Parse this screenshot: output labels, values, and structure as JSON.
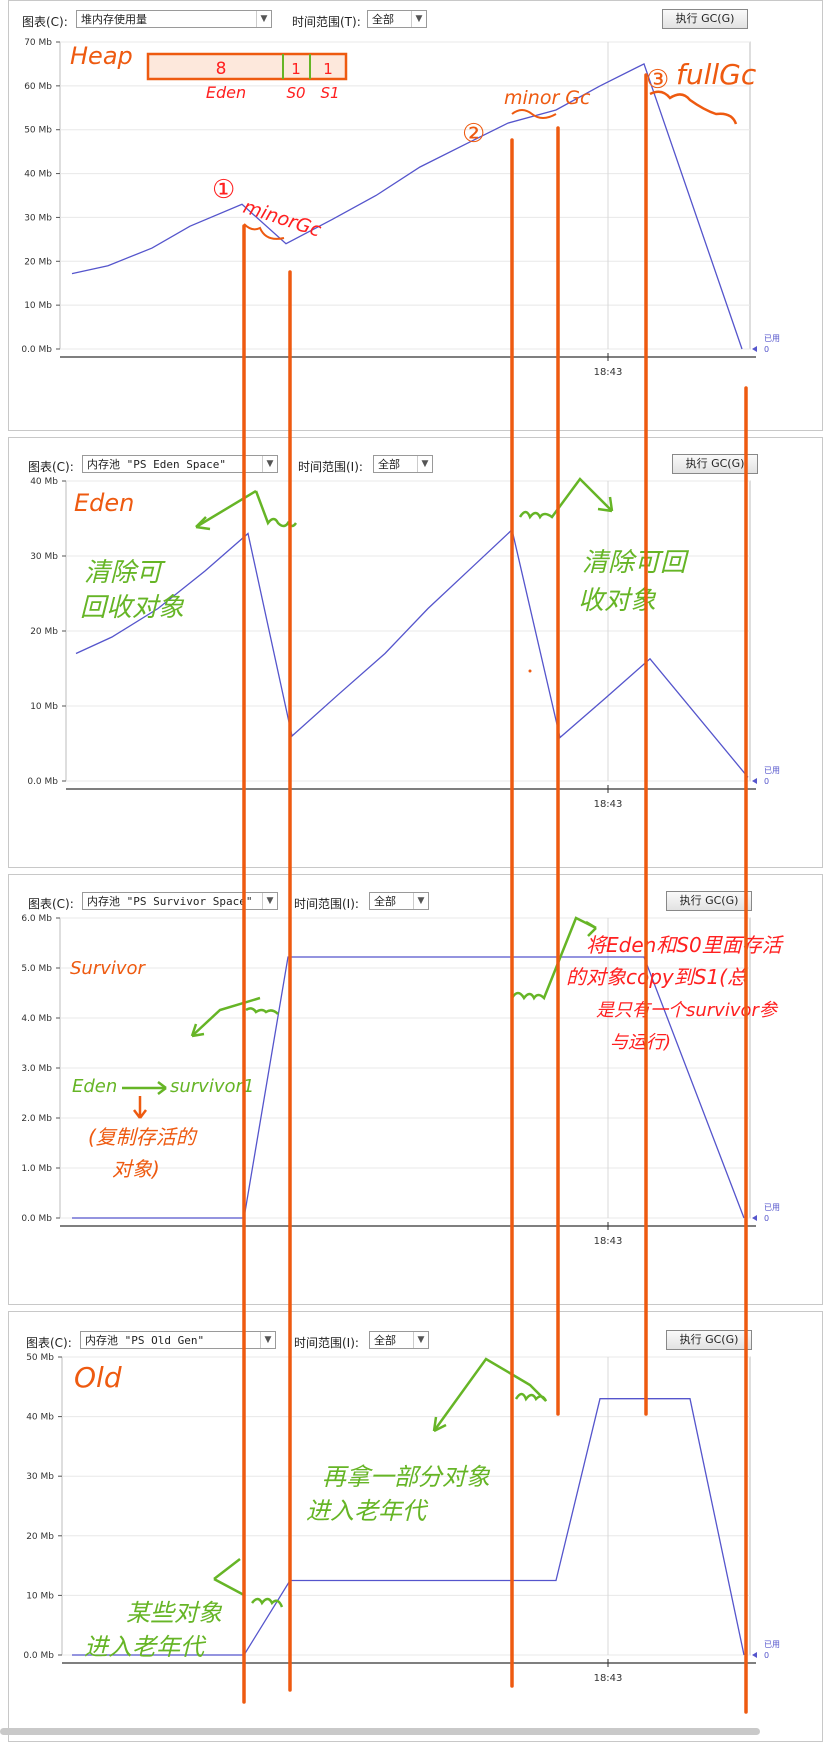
{
  "toolbar_common": {
    "chart_label": "图表(C):",
    "chart_label_alt": "图表(C):",
    "time_label": "时间范围(T):",
    "time_label_alt": "时间范围(I):",
    "time_value": "全部",
    "gc_button": "执行 GC(G)"
  },
  "panels": [
    {
      "selector": "堆内存使用量",
      "legend_label": "已用",
      "legend_value": "0"
    },
    {
      "selector": "内存池 \"PS Eden Space\"",
      "legend_label": "已用",
      "legend_value": "0"
    },
    {
      "selector": "内存池 \"PS Survivor Space\"",
      "legend_label": "已用",
      "legend_value": "0"
    },
    {
      "selector": "内存池 \"PS Old Gen\"",
      "legend_label": "已用",
      "legend_value": "0"
    }
  ],
  "chart_data": [
    {
      "type": "line",
      "ylim": [
        0,
        70
      ],
      "yticks": [
        "0.0 Mb",
        "10 Mb",
        "20 Mb",
        "30 Mb",
        "40 Mb",
        "50 Mb",
        "60 Mb",
        "70 Mb"
      ],
      "x_tick_label": "18:43",
      "series": [
        {
          "values": [
            17.2,
            19,
            23,
            28,
            33,
            24,
            29.5,
            35,
            41.5,
            47,
            51.5,
            54.5,
            60,
            65,
            0
          ]
        }
      ],
      "annotations": {
        "heap": "Heap",
        "eden_value": "8",
        "s0_value": "1",
        "s1_value": "1",
        "eden": "Eden",
        "s0": "S0",
        "s1": "S1",
        "n1": "①",
        "n2": "②",
        "n3": "③",
        "minor1": "minorGc",
        "minor2": "minor Gc",
        "full": "fullGc"
      }
    },
    {
      "type": "line",
      "ylim": [
        0,
        40
      ],
      "yticks": [
        "0.0 Mb",
        "10 Mb",
        "20 Mb",
        "30 Mb",
        "40 Mb"
      ],
      "x_tick_label": "18:43",
      "series": [
        {
          "values": [
            17,
            19.2,
            23,
            28,
            33,
            6,
            11.5,
            17,
            23,
            28.5,
            33.5,
            5.8,
            11,
            16.3,
            0.5
          ]
        }
      ],
      "annotations": {
        "title": "Eden",
        "note_left": "清除可回收对象",
        "note_right": "清除可回收对象"
      }
    },
    {
      "type": "line",
      "ylim": [
        0,
        6
      ],
      "yticks": [
        "0.0 Mb",
        "1.0 Mb",
        "2.0 Mb",
        "3.0 Mb",
        "4.0 Mb",
        "5.0 Mb",
        "6.0 Mb"
      ],
      "x_tick_label": "18:43",
      "series": [
        {
          "values": [
            0,
            0,
            0,
            0,
            0,
            5.22,
            5.22,
            5.22,
            5.22,
            5.22,
            5.22,
            5.22,
            5.22,
            5.22,
            0
          ]
        }
      ],
      "annotations": {
        "title": "Survivor",
        "eden_word": "Eden",
        "survivor_word": "survivor1",
        "copy_note": "(复制存活的对象)",
        "right_note": "将Eden和S0里面存活的对象copy到S1(总是只有一个survivor参与运行)"
      }
    },
    {
      "type": "line",
      "ylim": [
        0,
        50
      ],
      "yticks": [
        "0.0 Mb",
        "10 Mb",
        "20 Mb",
        "30 Mb",
        "40 Mb",
        "50 Mb"
      ],
      "x_tick_label": "18:43",
      "series": [
        {
          "values": [
            0,
            0,
            0,
            0,
            0,
            12.5,
            12.5,
            12.5,
            12.5,
            12.5,
            12.5,
            43,
            43,
            43,
            0
          ]
        }
      ],
      "annotations": {
        "title": "Old",
        "note_left": "某些对象进入老年代",
        "note_mid": "再拿一部分对象进入老年代"
      }
    }
  ],
  "colors": {
    "series": "#5555cc",
    "orange": "#ee5a10",
    "green": "#66b526",
    "red": "#ff2020",
    "grid": "#e8e8e8"
  }
}
